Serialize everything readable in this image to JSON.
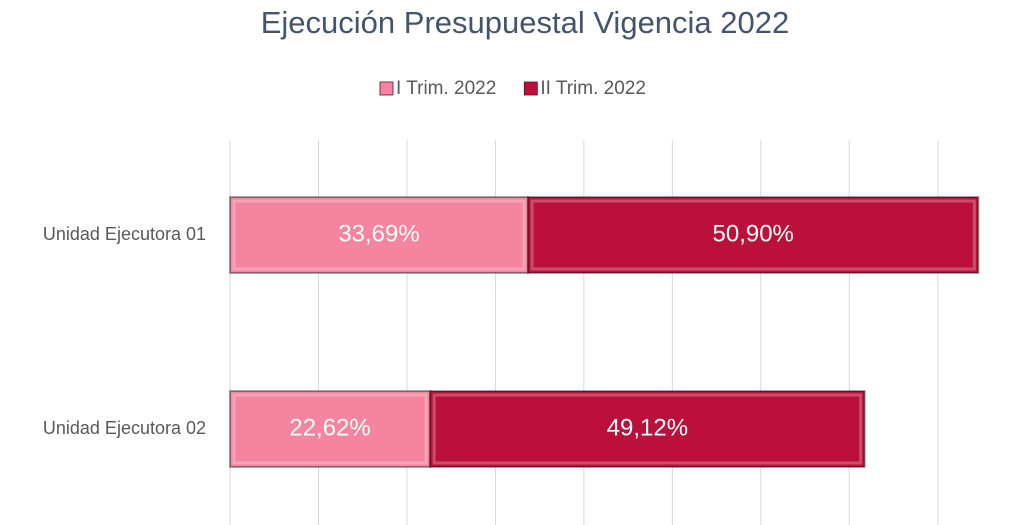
{
  "chart_data": {
    "type": "stacked_bar_horizontal",
    "title": "Ejecución Presupuestal Vigencia 2022",
    "categories": [
      "Unidad Ejecutora 01",
      "Unidad Ejecutora 02"
    ],
    "series": [
      {
        "name": "I Trim. 2022",
        "color": "#f4849f",
        "values": [
          33.69,
          22.62
        ],
        "value_labels": [
          "33,69%",
          "22,62%"
        ]
      },
      {
        "name": "II Trim. 2022",
        "color": "#bb1039",
        "values": [
          50.9,
          49.12
        ],
        "value_labels": [
          "50,90%",
          "49,12%"
        ]
      }
    ],
    "xlim": [
      0,
      85
    ],
    "xticks": [
      0,
      10,
      20,
      30,
      40,
      50,
      60,
      70,
      80
    ],
    "grid": true,
    "legend": "top"
  }
}
